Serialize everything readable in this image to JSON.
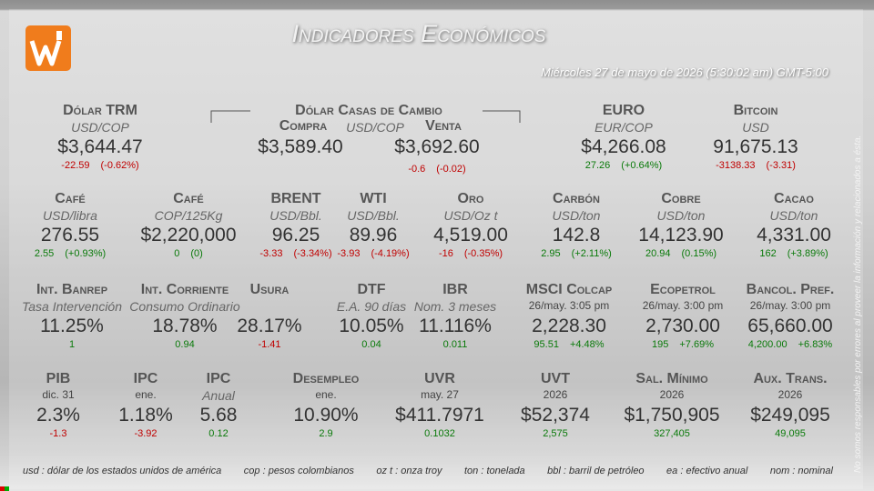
{
  "header": {
    "title": "Indicadores Económicos",
    "date": "Miércoles 27 de mayo de 2026 (5:30:02 am) GMT-5:00"
  },
  "exchange": {
    "name": "Dólar Casas de Cambio",
    "buy_label": "Compra",
    "unit": "USD/COP",
    "sell_label": "Venta",
    "buy_value": "$3,589.40",
    "sell_value": "$3,692.60",
    "sell_change": "-0.6",
    "sell_pct": "(-0.02)"
  },
  "rows": [
    [
      {
        "name": "Dólar TRM",
        "unit": "USD/COP",
        "value": "$3,644.47",
        "change": "-22.59",
        "pct": "(-0.62%)"
      },
      {
        "name": "EURO",
        "unit": "EUR/COP",
        "value": "$4,266.08",
        "change": "27.26",
        "pct": "(+0.64%)"
      },
      {
        "name": "Bitcoin",
        "unit": "USD",
        "value": "91,675.13",
        "change": "-3138.33",
        "pct": "(-3.31)"
      }
    ],
    [
      {
        "name": "Café",
        "unit": "USD/libra",
        "value": "276.55",
        "change": "2.55",
        "pct": "(+0.93%)"
      },
      {
        "name": "Café",
        "unit": "COP/125Kg",
        "value": "$2,220,000",
        "change": "0",
        "pct": "(0)"
      },
      {
        "name": "BRENT",
        "unit": "USD/Bbl.",
        "value": "96.25",
        "change": "-3.33",
        "pct": "(-3.34%)"
      },
      {
        "name": "WTI",
        "unit": "USD/Bbl.",
        "value": "89.96",
        "change": "-3.93",
        "pct": "(-4.19%)"
      },
      {
        "name": "Oro",
        "unit": "USD/Oz t",
        "value": "4,519.00",
        "change": "-16",
        "pct": "(-0.35%)"
      },
      {
        "name": "Carbón",
        "unit": "USD/ton",
        "value": "142.8",
        "change": "2.95",
        "pct": "(+2.11%)"
      },
      {
        "name": "Cobre",
        "unit": "USD/ton",
        "value": "14,123.90",
        "change": "20.94",
        "pct": "(0.15%)"
      },
      {
        "name": "Cacao",
        "unit": "USD/ton",
        "value": "4,331.00",
        "change": "162",
        "pct": "(+3.89%)"
      }
    ],
    [
      {
        "name": "Int. Banrep",
        "unit": "Tasa Intervención",
        "value": "11.25%",
        "change": "1"
      },
      {
        "name": "Int. Corriente",
        "unit": "Consumo Ordinario",
        "value": "18.78%",
        "change": "0.94"
      },
      {
        "name": "Usura",
        "value": "28.17%",
        "change": "-1.41"
      },
      {
        "name": "DTF",
        "unit": "E.A. 90 días",
        "value": "10.05%",
        "change": "0.04"
      },
      {
        "name": "IBR",
        "unit": "Nom. 3 meses",
        "value": "11.116%",
        "change": "0.011"
      },
      {
        "name": "MSCI Colcap",
        "date": "26/may. 3:05 pm",
        "value": "2,228.30",
        "change": "95.51",
        "pct": "+4.48%"
      },
      {
        "name": "Ecopetrol",
        "date": "26/may. 3:00 pm",
        "value": "2,730.00",
        "change": "195",
        "pct": "+7.69%"
      },
      {
        "name": "Bancol. Pref.",
        "date": "26/may. 3:00 pm",
        "value": "65,660.00",
        "change": "4,200.00",
        "pct": "+6.83%"
      }
    ],
    [
      {
        "name": "PIB",
        "date": "dic. 31",
        "value": "2.3%",
        "change": "-1.3"
      },
      {
        "name": "IPC",
        "date": "ene.",
        "value": "1.18%",
        "change": "-3.92"
      },
      {
        "name": "IPC",
        "unit": "Anual",
        "value": "5.68",
        "change": "0.12"
      },
      {
        "name": "Desempleo",
        "date": "ene.",
        "value": "10.90%",
        "change": "2.9"
      },
      {
        "name": "UVR",
        "date": "may. 27",
        "value": "$411.7971",
        "change": "0.1032"
      },
      {
        "name": "UVT",
        "date": "2026",
        "value": "$52,374",
        "change": "2,575"
      },
      {
        "name": "Sal. Mínimo",
        "date": "2026",
        "value": "$1,750,905",
        "change": "327,405"
      },
      {
        "name": "Aux. Trans.",
        "date": "2026",
        "value": "$249,095",
        "change": "49,095"
      }
    ]
  ],
  "glossary": [
    "usd : dólar de los estados unidos de américa",
    "cop : pesos colombianos",
    "oz t : onza troy",
    "ton : tonelada",
    "bbl : barril de petróleo",
    "ea : efectivo anual",
    "nom : nominal"
  ],
  "disclaimer": "No somos responsables por errores al proveer la información y relacionados a ésta."
}
